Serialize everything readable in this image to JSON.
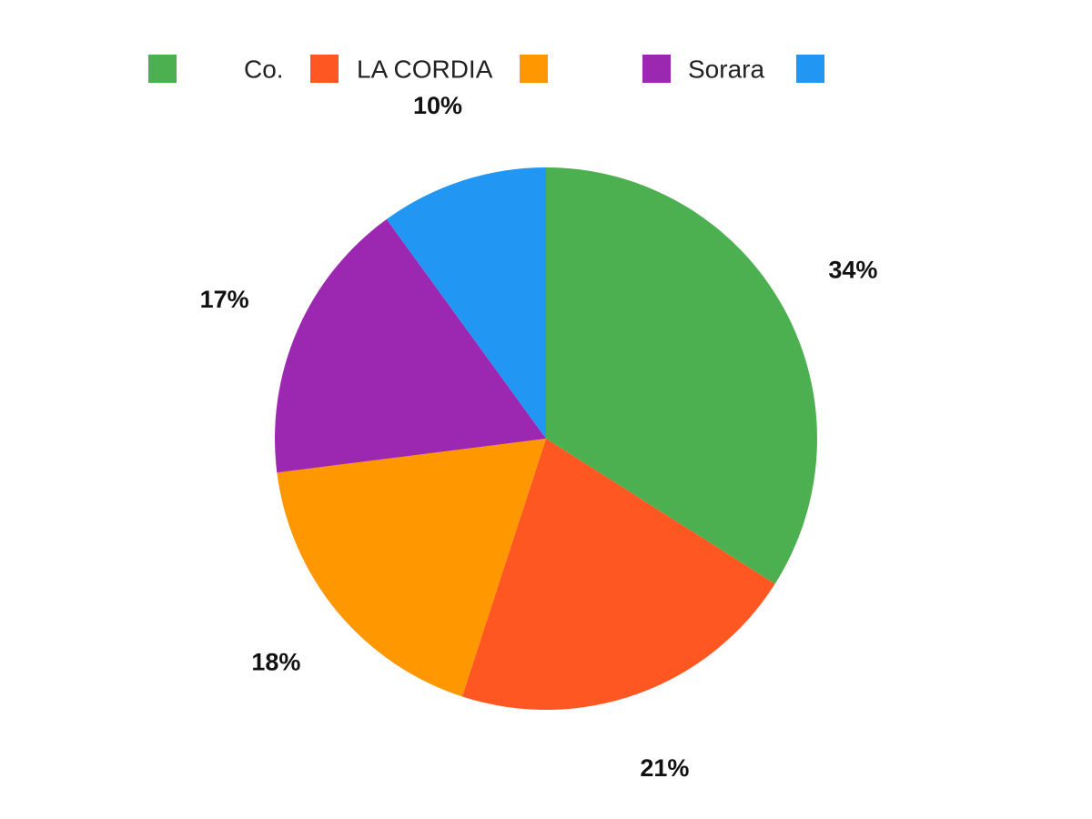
{
  "chart_data": {
    "type": "pie",
    "title": "",
    "legend_position": "top",
    "slices": [
      {
        "label": "Co.",
        "value": 34,
        "display": "34%",
        "color": "#4CAF50"
      },
      {
        "label": "LA CORDIA",
        "value": 21,
        "display": "21%",
        "color": "#FF5722"
      },
      {
        "label": "",
        "value": 18,
        "display": "18%",
        "color": "#FF9800"
      },
      {
        "label": "Sorara",
        "value": 17,
        "display": "17%",
        "color": "#9C27B0"
      },
      {
        "label": "",
        "value": 10,
        "display": "10%",
        "color": "#2196F3"
      }
    ]
  }
}
